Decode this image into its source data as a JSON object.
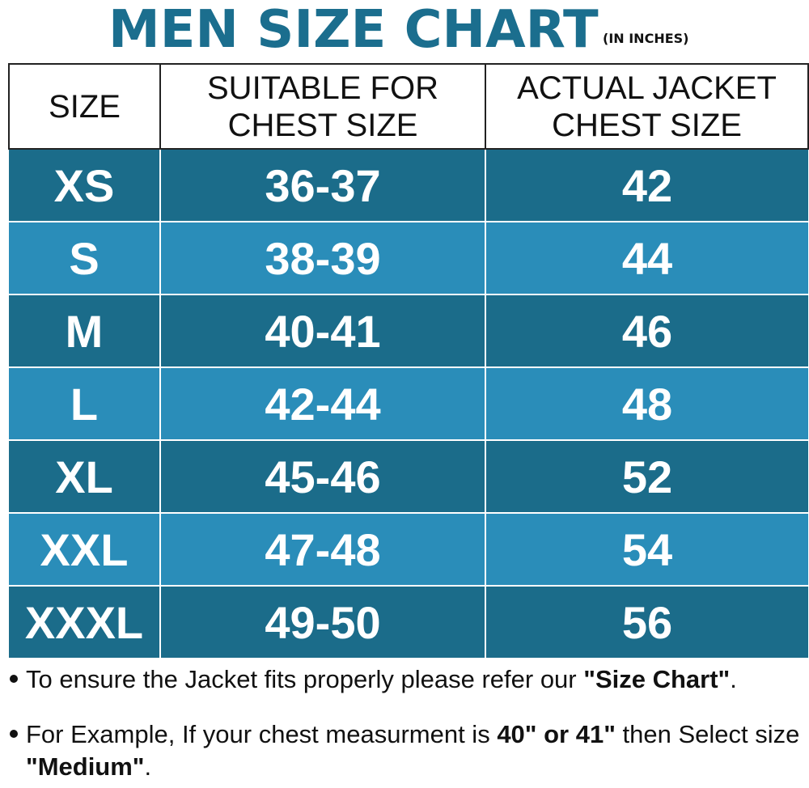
{
  "header": {
    "title": "MEN SIZE CHART",
    "unit": "(IN INCHES)"
  },
  "table": {
    "headers": [
      "SIZE",
      "SUITABLE FOR CHEST SIZE",
      "ACTUAL JACKET CHEST SIZE"
    ],
    "rows": [
      {
        "size": "XS",
        "suitable": "36-37",
        "actual": "42"
      },
      {
        "size": "S",
        "suitable": "38-39",
        "actual": "44"
      },
      {
        "size": "M",
        "suitable": "40-41",
        "actual": "46"
      },
      {
        "size": "L",
        "suitable": "42-44",
        "actual": "48"
      },
      {
        "size": "XL",
        "suitable": "45-46",
        "actual": "52"
      },
      {
        "size": "XXL",
        "suitable": "47-48",
        "actual": "54"
      },
      {
        "size": "XXXL",
        "suitable": "49-50",
        "actual": "56"
      }
    ]
  },
  "notes": {
    "note1": {
      "text": "To ensure the Jacket fits properly please refer our ",
      "bold": "\"Size Chart\"",
      "end": "."
    },
    "note2": {
      "text": "For Example, If your chest measurment is ",
      "bold1": "40\" or 41\"",
      "middle": " then Select size ",
      "bold2": "\"Medium\"",
      "end": "."
    }
  },
  "colors": {
    "title": "#1b6e8e",
    "row_dark": "#1b6c8a",
    "row_light": "#2a8db9",
    "header_bg": "#ffffff",
    "cell_text": "#ffffff"
  }
}
